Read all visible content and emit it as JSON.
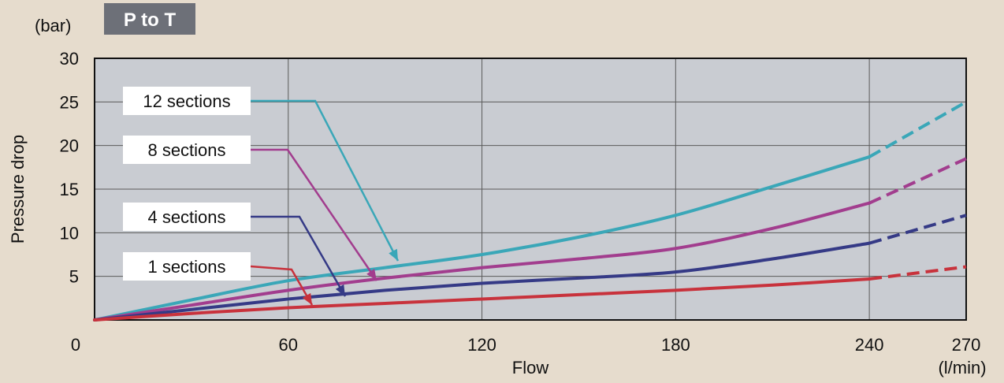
{
  "chart_data": {
    "type": "line",
    "title": "P to T",
    "ylabel": "Pressure drop",
    "yunit": "(bar)",
    "xlabel": "Flow",
    "xunit": "(l/min)",
    "xlim": [
      0,
      270
    ],
    "ylim": [
      0,
      30
    ],
    "x_ticks": [
      0,
      60,
      120,
      180,
      240,
      270
    ],
    "y_ticks": [
      5,
      10,
      15,
      20,
      25,
      30
    ],
    "grid": true,
    "dashed_from_x": 240,
    "colors": {
      "plot_background": "#c9ccd2",
      "page_background": "#e6dccd",
      "title_badge": "#6d7078",
      "grid": "#5a5a5a"
    },
    "series": [
      {
        "name": "12 sections",
        "color": "#3aa7b8",
        "x": [
          0,
          30,
          60,
          90,
          120,
          150,
          180,
          210,
          240,
          270
        ],
        "y": [
          0,
          2.3,
          4.5,
          6.0,
          7.5,
          9.5,
          12.0,
          15.3,
          18.7,
          25.0
        ]
      },
      {
        "name": "8 sections",
        "color": "#a23d8e",
        "x": [
          0,
          30,
          60,
          90,
          120,
          150,
          180,
          210,
          240,
          270
        ],
        "y": [
          0,
          1.7,
          3.4,
          4.8,
          6.0,
          7.0,
          8.2,
          10.5,
          13.4,
          18.5
        ]
      },
      {
        "name": "4 sections",
        "color": "#353a86",
        "x": [
          0,
          30,
          60,
          90,
          120,
          150,
          180,
          210,
          240,
          270
        ],
        "y": [
          0,
          1.2,
          2.4,
          3.4,
          4.2,
          4.8,
          5.5,
          7.0,
          8.8,
          12.0
        ]
      },
      {
        "name": "1 sections",
        "color": "#c8323c",
        "x": [
          0,
          30,
          60,
          90,
          120,
          150,
          180,
          210,
          240,
          270
        ],
        "y": [
          0,
          0.75,
          1.4,
          1.9,
          2.4,
          2.9,
          3.4,
          4.0,
          4.7,
          6.1
        ]
      }
    ]
  }
}
